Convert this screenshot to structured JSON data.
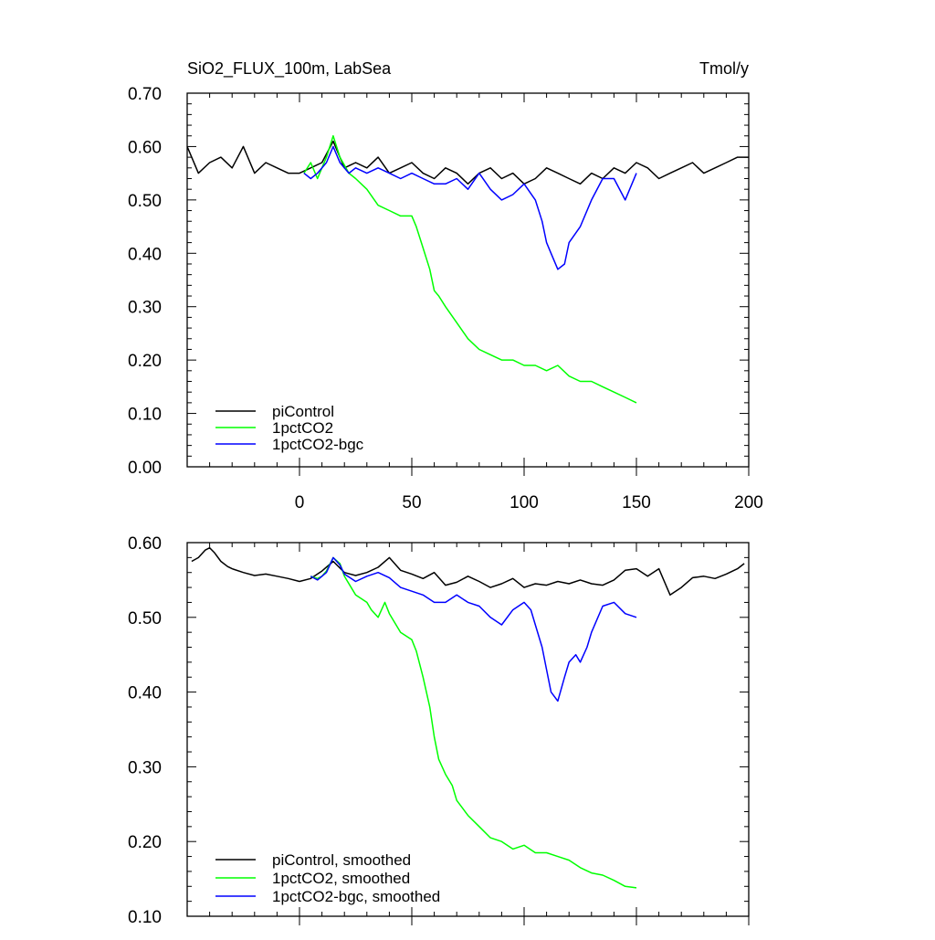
{
  "chart_data": [
    {
      "type": "line",
      "title": "SiO2_FLUX_100m, LabSea",
      "units": "Tmol/y",
      "xlim": [
        -50,
        200
      ],
      "ylim": [
        0.0,
        0.7
      ],
      "xticks": [
        0,
        50,
        100,
        150,
        200
      ],
      "xtick_labels": [
        "0",
        "50",
        "100",
        "150",
        "200"
      ],
      "yticks": [
        0.0,
        0.1,
        0.2,
        0.3,
        0.4,
        0.5,
        0.6,
        0.7
      ],
      "ytick_labels": [
        "0.00",
        "0.10",
        "0.20",
        "0.30",
        "0.40",
        "0.50",
        "0.60",
        "0.70"
      ],
      "legend_position": "bottom-left",
      "series": [
        {
          "name": "piControl",
          "color": "#000000",
          "x": [
            -50,
            -45,
            -40,
            -35,
            -30,
            -25,
            -20,
            -15,
            -10,
            -5,
            0,
            5,
            10,
            15,
            20,
            25,
            30,
            35,
            40,
            45,
            50,
            55,
            60,
            65,
            70,
            75,
            80,
            85,
            90,
            95,
            100,
            105,
            110,
            115,
            120,
            125,
            130,
            135,
            140,
            145,
            150,
            155,
            160,
            165,
            170,
            175,
            180,
            185,
            190,
            195,
            200
          ],
          "y": [
            0.6,
            0.55,
            0.57,
            0.58,
            0.56,
            0.6,
            0.55,
            0.57,
            0.56,
            0.55,
            0.55,
            0.56,
            0.57,
            0.61,
            0.56,
            0.57,
            0.56,
            0.58,
            0.55,
            0.56,
            0.57,
            0.55,
            0.54,
            0.56,
            0.55,
            0.53,
            0.55,
            0.56,
            0.54,
            0.55,
            0.53,
            0.54,
            0.56,
            0.55,
            0.54,
            0.53,
            0.55,
            0.54,
            0.56,
            0.55,
            0.57,
            0.56,
            0.54,
            0.55,
            0.56,
            0.57,
            0.55,
            0.56,
            0.57,
            0.58,
            0.58
          ]
        },
        {
          "name": "1pctCO2",
          "color": "#00ff00",
          "x": [
            2,
            5,
            8,
            12,
            15,
            18,
            22,
            25,
            30,
            35,
            40,
            45,
            50,
            52,
            55,
            58,
            60,
            62,
            65,
            70,
            75,
            80,
            85,
            90,
            95,
            100,
            105,
            110,
            115,
            120,
            125,
            130,
            135,
            140,
            145,
            150
          ],
          "y": [
            0.55,
            0.57,
            0.54,
            0.58,
            0.62,
            0.58,
            0.55,
            0.54,
            0.52,
            0.49,
            0.48,
            0.47,
            0.47,
            0.45,
            0.41,
            0.37,
            0.33,
            0.32,
            0.3,
            0.27,
            0.24,
            0.22,
            0.21,
            0.2,
            0.2,
            0.19,
            0.19,
            0.18,
            0.19,
            0.17,
            0.16,
            0.16,
            0.15,
            0.14,
            0.13,
            0.12
          ]
        },
        {
          "name": "1pctCO2-bgc",
          "color": "#0000ff",
          "x": [
            2,
            5,
            8,
            12,
            15,
            18,
            22,
            25,
            30,
            35,
            40,
            45,
            50,
            55,
            60,
            65,
            70,
            75,
            80,
            85,
            90,
            95,
            100,
            105,
            108,
            110,
            112,
            115,
            118,
            120,
            125,
            130,
            135,
            140,
            145,
            150
          ],
          "y": [
            0.55,
            0.54,
            0.55,
            0.57,
            0.6,
            0.57,
            0.55,
            0.56,
            0.55,
            0.56,
            0.55,
            0.54,
            0.55,
            0.54,
            0.53,
            0.53,
            0.54,
            0.52,
            0.55,
            0.52,
            0.5,
            0.51,
            0.53,
            0.5,
            0.46,
            0.42,
            0.4,
            0.37,
            0.38,
            0.42,
            0.45,
            0.5,
            0.54,
            0.54,
            0.5,
            0.55
          ]
        }
      ]
    },
    {
      "type": "line",
      "xlim": [
        -50,
        200
      ],
      "ylim": [
        0.1,
        0.6
      ],
      "xticks": [
        0,
        50,
        100,
        150,
        200
      ],
      "yticks": [
        0.1,
        0.2,
        0.3,
        0.4,
        0.5,
        0.6
      ],
      "ytick_labels": [
        "0.10",
        "0.20",
        "0.30",
        "0.40",
        "0.50",
        "0.60"
      ],
      "legend_position": "bottom-left",
      "series": [
        {
          "name": "piControl, smoothed",
          "color": "#000000",
          "x": [
            -48,
            -45,
            -42,
            -40,
            -38,
            -35,
            -32,
            -30,
            -25,
            -20,
            -15,
            -10,
            -5,
            0,
            5,
            10,
            15,
            20,
            25,
            30,
            35,
            40,
            45,
            50,
            55,
            60,
            65,
            70,
            75,
            80,
            85,
            90,
            95,
            100,
            105,
            110,
            115,
            120,
            125,
            130,
            135,
            140,
            145,
            150,
            155,
            160,
            165,
            170,
            175,
            180,
            185,
            190,
            195,
            198
          ],
          "y": [
            0.575,
            0.58,
            0.59,
            0.593,
            0.587,
            0.575,
            0.568,
            0.565,
            0.56,
            0.556,
            0.558,
            0.555,
            0.552,
            0.548,
            0.552,
            0.562,
            0.575,
            0.56,
            0.556,
            0.56,
            0.567,
            0.58,
            0.563,
            0.558,
            0.552,
            0.56,
            0.543,
            0.547,
            0.555,
            0.548,
            0.54,
            0.545,
            0.552,
            0.54,
            0.545,
            0.543,
            0.548,
            0.545,
            0.55,
            0.545,
            0.543,
            0.55,
            0.563,
            0.565,
            0.555,
            0.565,
            0.53,
            0.54,
            0.553,
            0.555,
            0.552,
            0.558,
            0.565,
            0.572
          ]
        },
        {
          "name": "1pctCO2, smoothed",
          "color": "#00ff00",
          "x": [
            5,
            8,
            10,
            12,
            15,
            18,
            20,
            25,
            30,
            32,
            35,
            38,
            40,
            45,
            50,
            52,
            55,
            58,
            60,
            62,
            65,
            68,
            70,
            75,
            80,
            85,
            90,
            95,
            100,
            105,
            110,
            115,
            120,
            125,
            130,
            135,
            140,
            145,
            150
          ],
          "y": [
            0.555,
            0.552,
            0.555,
            0.562,
            0.58,
            0.572,
            0.555,
            0.53,
            0.52,
            0.51,
            0.5,
            0.52,
            0.505,
            0.48,
            0.47,
            0.455,
            0.42,
            0.38,
            0.34,
            0.31,
            0.29,
            0.275,
            0.255,
            0.235,
            0.22,
            0.205,
            0.2,
            0.19,
            0.195,
            0.185,
            0.185,
            0.18,
            0.175,
            0.165,
            0.158,
            0.155,
            0.148,
            0.14,
            0.138
          ]
        },
        {
          "name": "1pctCO2-bgc, smoothed",
          "color": "#0000ff",
          "x": [
            5,
            8,
            10,
            12,
            15,
            18,
            20,
            25,
            30,
            35,
            40,
            45,
            50,
            55,
            60,
            65,
            70,
            75,
            80,
            85,
            90,
            95,
            100,
            103,
            105,
            108,
            110,
            112,
            115,
            118,
            120,
            123,
            125,
            128,
            130,
            135,
            140,
            145,
            150
          ],
          "y": [
            0.555,
            0.55,
            0.555,
            0.56,
            0.58,
            0.57,
            0.558,
            0.548,
            0.555,
            0.56,
            0.553,
            0.54,
            0.535,
            0.53,
            0.52,
            0.52,
            0.53,
            0.52,
            0.515,
            0.5,
            0.49,
            0.51,
            0.52,
            0.51,
            0.49,
            0.46,
            0.43,
            0.4,
            0.388,
            0.42,
            0.44,
            0.45,
            0.44,
            0.46,
            0.48,
            0.515,
            0.52,
            0.505,
            0.5
          ]
        }
      ]
    }
  ]
}
